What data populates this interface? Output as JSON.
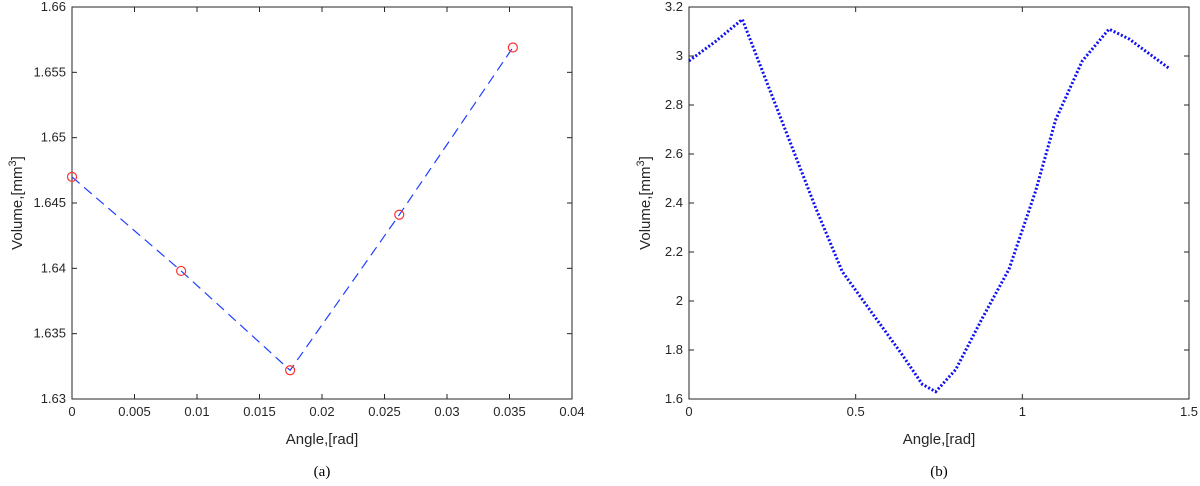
{
  "chart_data": [
    {
      "type": "line",
      "caption": "(a)",
      "xlabel": "Angle,[rad]",
      "ylabel": "Volume,[mm",
      "ylabel_sup": "3",
      "ylabel_close": "]",
      "xlim": [
        0,
        0.04
      ],
      "ylim": [
        1.63,
        1.66
      ],
      "xticks": [
        "0",
        "0.005",
        "0.01",
        "0.015",
        "0.02",
        "0.025",
        "0.03",
        "0.035",
        "0.04"
      ],
      "yticks": [
        "1.63",
        "1.635",
        "1.64",
        "1.645",
        "1.65",
        "1.655",
        "1.66"
      ],
      "grid": false,
      "series": [
        {
          "line_style": "dashed",
          "line_color": "#1f3fff",
          "marker": "circle",
          "marker_color": "#ff3030",
          "x": [
            0,
            0.00873,
            0.01745,
            0.02618,
            0.03527
          ],
          "y": [
            1.647,
            1.6398,
            1.6322,
            1.6441,
            1.6569
          ]
        }
      ]
    },
    {
      "type": "line",
      "caption": "(b)",
      "xlabel": "Angle,[rad]",
      "ylabel": "Volume,[mm",
      "ylabel_sup": "3",
      "ylabel_close": "]",
      "xlim": [
        0,
        1.5
      ],
      "ylim": [
        1.6,
        3.2
      ],
      "xticks": [
        "0",
        "0.5",
        "1",
        "1.5"
      ],
      "yticks": [
        "1.6",
        "1.8",
        "2",
        "2.2",
        "2.4",
        "2.6",
        "2.8",
        "3",
        "3.2"
      ],
      "grid": false,
      "series": [
        {
          "line_style": "dotted",
          "line_color": "#1010f0",
          "marker": "none",
          "x": [
            0,
            0.08,
            0.16,
            0.22,
            0.3,
            0.38,
            0.46,
            0.55,
            0.64,
            0.7,
            0.74,
            0.8,
            0.88,
            0.96,
            1.04,
            1.1,
            1.18,
            1.26,
            1.32,
            1.38,
            1.44
          ],
          "y": [
            2.98,
            3.06,
            3.15,
            2.94,
            2.66,
            2.38,
            2.12,
            1.95,
            1.78,
            1.66,
            1.63,
            1.72,
            1.93,
            2.13,
            2.45,
            2.74,
            2.98,
            3.11,
            3.07,
            3.01,
            2.95
          ]
        }
      ]
    }
  ]
}
